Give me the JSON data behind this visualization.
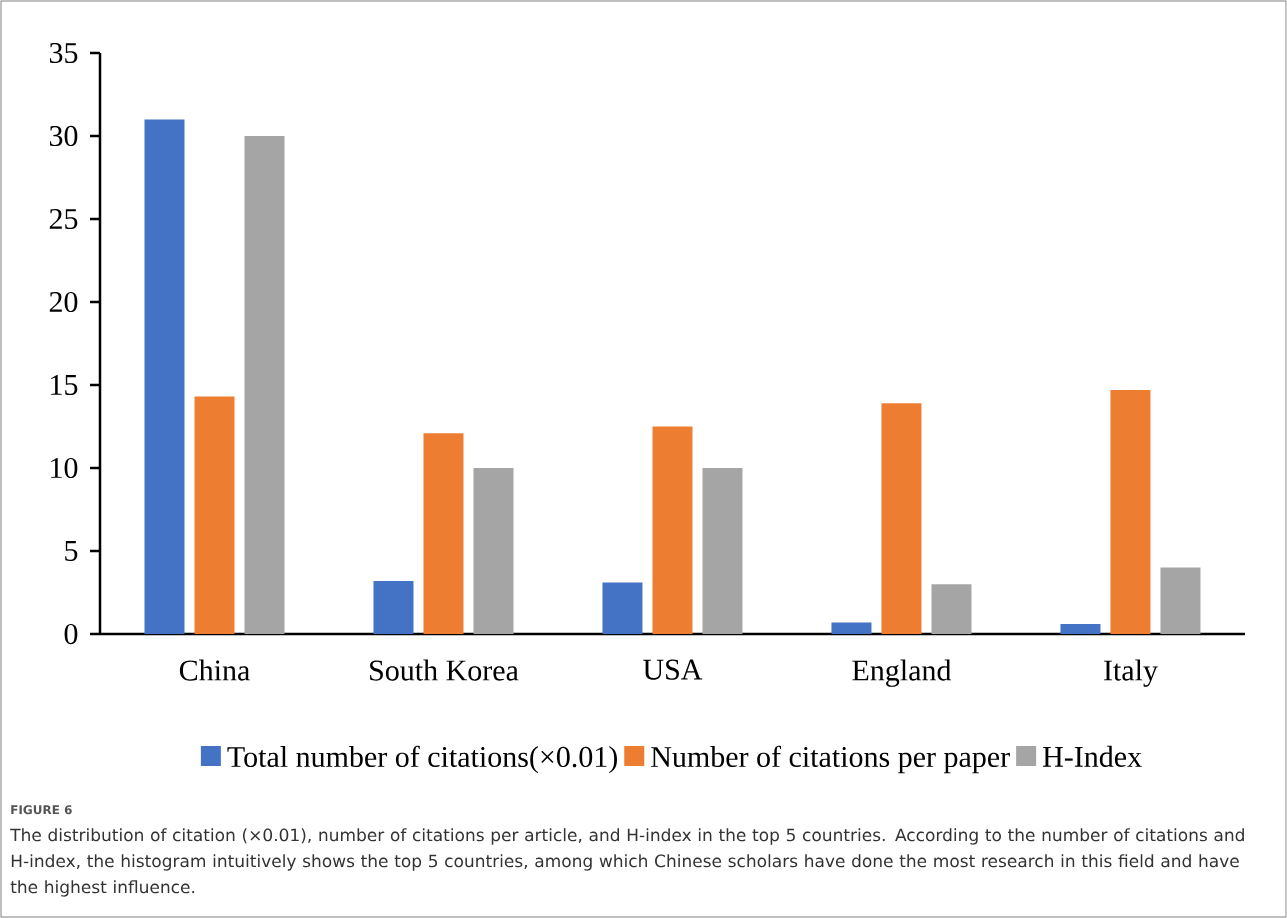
{
  "chart_data": {
    "type": "bar",
    "categories": [
      "China",
      "South Korea",
      "USA",
      "England",
      "Italy"
    ],
    "series": [
      {
        "name": "Total number of citations(×0.01)",
        "color": "#4472c4",
        "values": [
          31.0,
          3.2,
          3.1,
          0.7,
          0.6
        ]
      },
      {
        "name": "Number of citations per paper",
        "color": "#ed7d31",
        "values": [
          14.3,
          12.1,
          12.5,
          13.9,
          14.7
        ]
      },
      {
        "name": "H-Index",
        "color": "#a5a5a5",
        "values": [
          30.0,
          10.0,
          10.0,
          3.0,
          4.0
        ]
      }
    ],
    "ylim": [
      0,
      35
    ],
    "yticks": [
      0,
      5,
      10,
      15,
      20,
      25,
      30,
      35
    ],
    "legend": "bottom",
    "annotations": [
      "FIGURE 6",
      "The distribution of citation (×0.01), number of citations per article, and H-index in the top 5 countries. According to the number of citations and H-index, the histogram intuitively shows the top 5 countries, among which Chinese scholars have done the most research in this field and have the highest influence."
    ]
  }
}
